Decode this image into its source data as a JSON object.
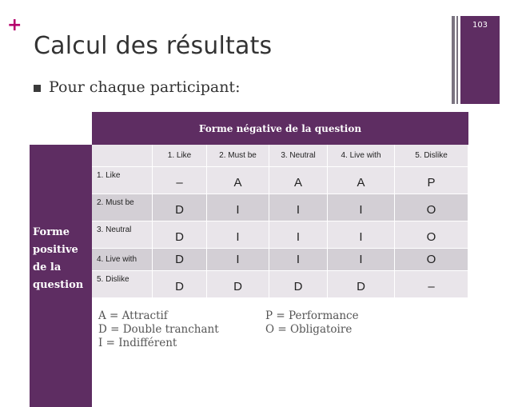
{
  "slide": {
    "plus": "+",
    "title": "Calcul des résultats",
    "page_number": "103",
    "bullet": "Pour chaque participant:"
  },
  "table": {
    "column_header": "Forme négative de la question",
    "row_header": "Forme positive de la question",
    "columns": [
      "",
      "1. Like",
      "2. Must be",
      "3. Neutral",
      "4. Live with",
      "5. Dislike"
    ],
    "rows": [
      {
        "label": "1. Like",
        "values": [
          "–",
          "A",
          "A",
          "A",
          "P"
        ]
      },
      {
        "label": "2. Must be",
        "values": [
          "D",
          "I",
          "I",
          "I",
          "O"
        ]
      },
      {
        "label": "3. Neutral",
        "values": [
          "D",
          "I",
          "I",
          "I",
          "O"
        ]
      },
      {
        "label": "4. Live with",
        "values": [
          "D",
          "I",
          "I",
          "I",
          "O"
        ]
      },
      {
        "label": "5. Dislike",
        "values": [
          "D",
          "D",
          "D",
          "D",
          "–"
        ]
      }
    ]
  },
  "legend": {
    "left": [
      "A = Attractif",
      "D = Double tranchant",
      "I = Indifférent"
    ],
    "right": [
      "P = Performance",
      "O = Obligatoire"
    ]
  },
  "colors": {
    "accent": "#5e2d62",
    "plus": "#b5006b",
    "row_light": "#e9e5ea",
    "row_dark": "#d3cfd5"
  }
}
